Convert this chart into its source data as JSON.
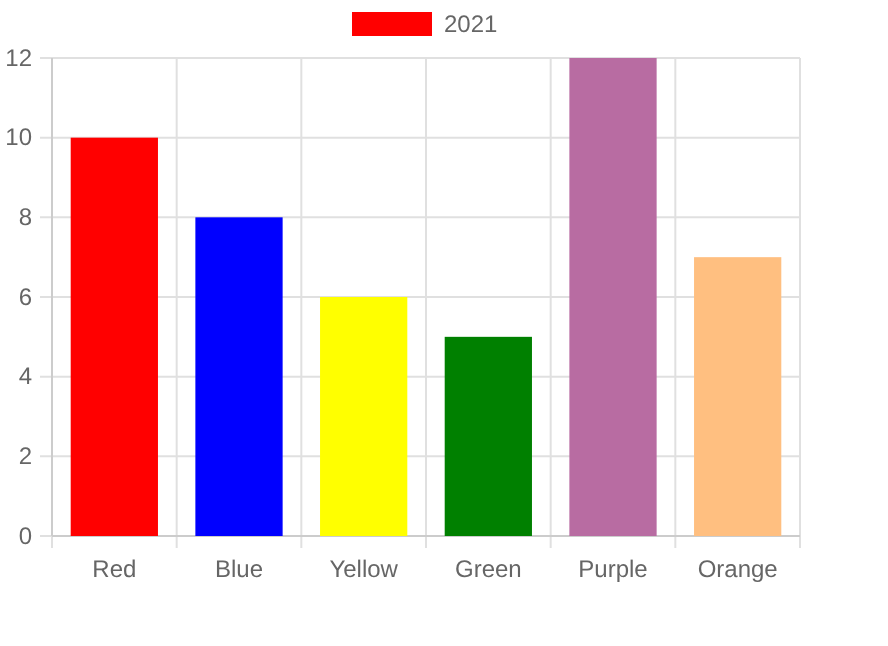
{
  "chart_data": {
    "type": "bar",
    "categories": [
      "Red",
      "Blue",
      "Yellow",
      "Green",
      "Purple",
      "Orange"
    ],
    "series": [
      {
        "name": "2021",
        "color": "#ff0000",
        "colors": [
          "#ff0000",
          "#0000ff",
          "#ffff00",
          "#008000",
          "#b86ca2",
          "#ffbf80"
        ],
        "values": [
          10,
          8,
          6,
          5,
          12,
          7
        ]
      }
    ],
    "ylim": [
      0,
      12
    ],
    "yticks": [
      0,
      2,
      4,
      6,
      8,
      10,
      12
    ],
    "grid": true,
    "legend": "top"
  }
}
